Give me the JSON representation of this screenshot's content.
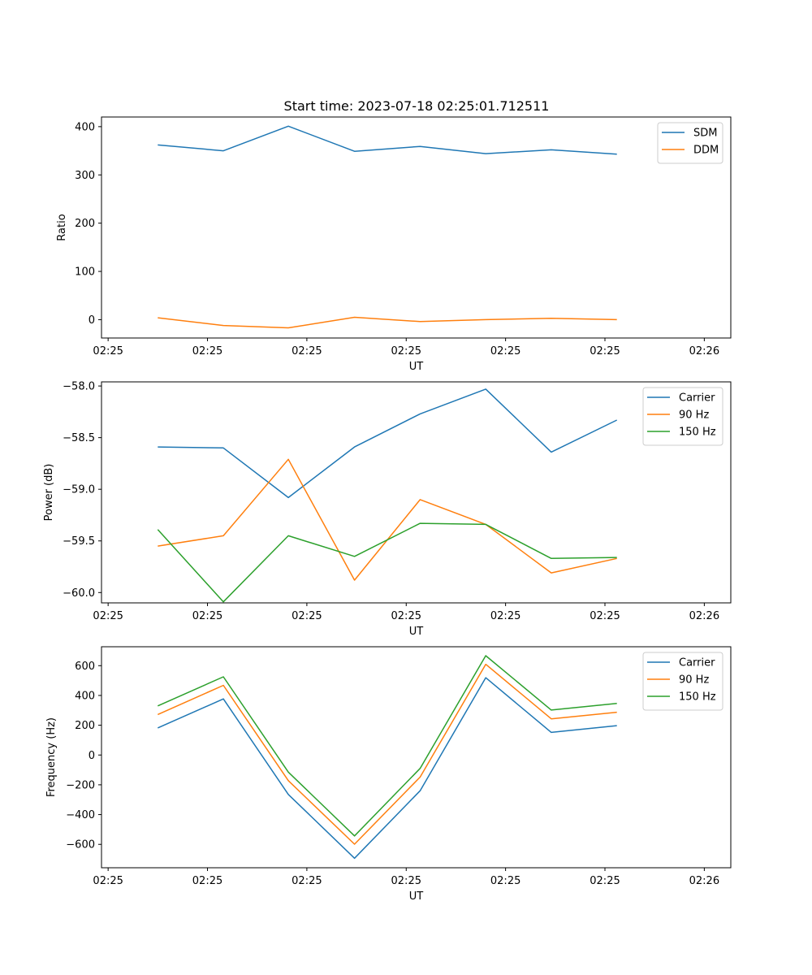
{
  "figure": {
    "title": "Start time: 2023-07-18 02:25:01.712511"
  },
  "colors": {
    "blue": "#1f77b4",
    "orange": "#ff7f0e",
    "green": "#2ca02c"
  },
  "chart_data": [
    {
      "type": "line",
      "title": "Start time: 2023-07-18 02:25:01.712511",
      "xlabel": "UT",
      "ylabel": "Ratio",
      "xlim": [
        0,
        9.5
      ],
      "x_ticks": [
        0.1,
        1.6,
        3.1,
        4.6,
        6.1,
        7.6,
        9.1
      ],
      "x_tick_labels": [
        "02:25",
        "02:25",
        "02:25",
        "02:25",
        "02:25",
        "02:25",
        "02:26"
      ],
      "ylim": [
        -38,
        420
      ],
      "y_ticks": [
        0,
        100,
        200,
        300,
        400
      ],
      "y_tick_labels": [
        "0",
        "100",
        "200",
        "300",
        "400"
      ],
      "x": [
        0.85,
        1.84,
        2.82,
        3.82,
        4.81,
        5.8,
        6.79,
        7.78
      ],
      "series": [
        {
          "name": "SDM",
          "color": "#1f77b4",
          "values": [
            362,
            350,
            401,
            349,
            359,
            344,
            352,
            343
          ]
        },
        {
          "name": "DDM",
          "color": "#ff7f0e",
          "values": [
            4,
            -12,
            -17,
            5,
            -4,
            0,
            3,
            0
          ]
        }
      ],
      "legend": "top-right",
      "grid": false
    },
    {
      "type": "line",
      "title": "",
      "xlabel": "UT",
      "ylabel": "Power (dB)",
      "xlim": [
        0,
        9.5
      ],
      "x_ticks": [
        0.1,
        1.6,
        3.1,
        4.6,
        6.1,
        7.6,
        9.1
      ],
      "x_tick_labels": [
        "02:25",
        "02:25",
        "02:25",
        "02:25",
        "02:25",
        "02:25",
        "02:26"
      ],
      "ylim": [
        -60.1,
        -57.96
      ],
      "y_ticks": [
        -58.0,
        -58.5,
        -59.0,
        -59.5,
        -60.0
      ],
      "y_tick_labels": [
        "−58.0",
        "−58.5",
        "−59.0",
        "−59.5",
        "−60.0"
      ],
      "x": [
        0.85,
        1.84,
        2.82,
        3.82,
        4.81,
        5.8,
        6.79,
        7.78
      ],
      "series": [
        {
          "name": "Carrier",
          "color": "#1f77b4",
          "values": [
            -58.59,
            -58.6,
            -59.08,
            -58.59,
            -58.27,
            -58.03,
            -58.64,
            -58.33
          ]
        },
        {
          "name": "90 Hz",
          "color": "#ff7f0e",
          "values": [
            -59.55,
            -59.45,
            -58.71,
            -59.88,
            -59.1,
            -59.34,
            -59.81,
            -59.67
          ]
        },
        {
          "name": "150 Hz",
          "color": "#2ca02c",
          "values": [
            -59.39,
            -60.09,
            -59.45,
            -59.65,
            -59.33,
            -59.34,
            -59.67,
            -59.66
          ]
        }
      ],
      "legend": "top-right",
      "grid": false
    },
    {
      "type": "line",
      "title": "",
      "xlabel": "UT",
      "ylabel": "Frequency (Hz)",
      "xlim": [
        0,
        9.5
      ],
      "x_ticks": [
        0.1,
        1.6,
        3.1,
        4.6,
        6.1,
        7.6,
        9.1
      ],
      "x_tick_labels": [
        "02:25",
        "02:25",
        "02:25",
        "02:25",
        "02:25",
        "02:25",
        "02:26"
      ],
      "ylim": [
        -757,
        727
      ],
      "y_ticks": [
        600,
        400,
        200,
        0,
        -200,
        -400,
        -600
      ],
      "y_tick_labels": [
        "600",
        "400",
        "200",
        "0",
        "−200",
        "−400",
        "−600"
      ],
      "x": [
        0.85,
        1.84,
        2.82,
        3.82,
        4.81,
        5.8,
        6.79,
        7.78
      ],
      "series": [
        {
          "name": "Carrier",
          "color": "#1f77b4",
          "values": [
            182,
            377,
            -265,
            -693,
            -240,
            519,
            152,
            197
          ]
        },
        {
          "name": "90 Hz",
          "color": "#ff7f0e",
          "values": [
            272,
            468,
            -172,
            -599,
            -148,
            609,
            243,
            287
          ]
        },
        {
          "name": "150 Hz",
          "color": "#2ca02c",
          "values": [
            330,
            525,
            -115,
            -543,
            -90,
            667,
            302,
            346
          ]
        }
      ],
      "legend": "top-right",
      "grid": false
    }
  ]
}
